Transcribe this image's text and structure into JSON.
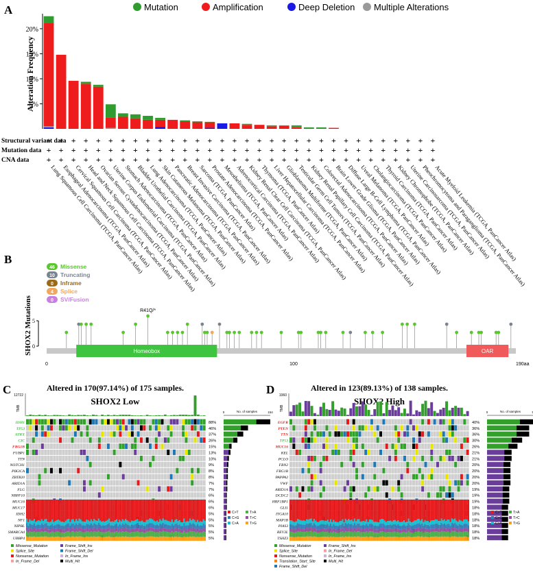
{
  "panels": {
    "a": {
      "letter": "A"
    },
    "b": {
      "letter": "B"
    },
    "c": {
      "letter": "C",
      "header": "Altered in 170(97.14%) of 175 samples.",
      "subtitle": "SHOX2 Low"
    },
    "d": {
      "letter": "D",
      "header": "Altered in 123(89.13%) of 138 samples.",
      "subtitle": "SHOX2 High"
    }
  },
  "chart_data": [
    {
      "type": "bar",
      "panel": "A",
      "ylabel": "Alteration Frequency",
      "ylim": [
        0,
        23
      ],
      "yticks": [
        "5%",
        "10%",
        "15%",
        "20%"
      ],
      "ytick_values": [
        5,
        10,
        15,
        20
      ],
      "legend": [
        {
          "name": "Mutation",
          "color": "#2e9c2e"
        },
        {
          "name": "Amplification",
          "color": "#ee1c1c"
        },
        {
          "name": "Deep Deletion",
          "color": "#1a1ae6"
        },
        {
          "name": "Multiple Alterations",
          "color": "#9a9a9a"
        }
      ],
      "row_labels": [
        "Structural variant data",
        "Mutation data",
        "CNA data"
      ],
      "row_mark": "+",
      "categories": [
        "Lung Squamous Cell Carcinoma (TCGA, PanCancer Atlas)",
        "Esophageal Adenocarcinoma (TCGA, PanCancer Atlas)",
        "Cervical Squamous Cell Carcinoma (TCGA, PanCancer Atlas)",
        "Head and Neck Squamous Cell Carcinoma (TCGA, PanCancer Atlas)",
        "Ovarian Serous Cystadenocarcinoma (TCGA, PanCancer Atlas)",
        "Uterine Corpus Endometrial Carcinoma (TCGA, PanCancer Atlas)",
        "Stomach Adenocarcinoma (TCGA, PanCancer Atlas)",
        "Bladder Urothelial Carcinoma (TCGA, PanCancer Atlas)",
        "Lung Adenocarcinoma (TCGA, PanCancer Atlas)",
        "Skin Cutaneous Melanoma (TCGA, PanCancer Atlas)",
        "Pancreatic Adenocarcinoma (TCGA, PanCancer Atlas)",
        "Breast Invasive Carcinoma (TCGA, PanCancer Atlas)",
        "Sarcoma (TCGA, PanCancer Atlas)",
        "Prostate Adenocarcinoma (TCGA, PanCancer Atlas)",
        "Mesothelioma (TCGA, PanCancer Atlas)",
        "Adrenocortical Carcinoma (TCGA, PanCancer Atlas)",
        "Kidney Renal Clear Cell Carcinoma (TCGA, PanCancer Atlas)",
        "Thymoma (TCGA, PanCancer Atlas)",
        "Liver Hepatocellular Carcinoma (TCGA, PanCancer Atlas)",
        "Glioblastoma Multiforme (TCGA, PanCancer Atlas)",
        "Testicular Germ Cell Tumors (TCGA, PanCancer Atlas)",
        "Kidney Renal Papillary Cell Carcinoma (TCGA, PanCancer Atlas)",
        "Colorectal Adenocarcinoma (TCGA, PanCancer Atlas)",
        "Brain Lower Grade Glioma (TCGA, PanCancer Atlas)",
        "Diffuse Large B-Cell Lymphoma (TCGA, PanCancer Atlas)",
        "Uveal Melanoma (TCGA, PanCancer Atlas)",
        "Cholangiocarcinoma (TCGA, PanCancer Atlas)",
        "Thyroid Carcinoma (TCGA, PanCancer Atlas)",
        "Kidney Chromophobe (TCGA, PanCancer Atlas)",
        "Uterine Carcinosarcoma (TCGA, PanCancer Atlas)",
        "Pheochromocytoma and Paraganglioma (TCGA, PanCancer Atlas)",
        "Acute Myeloid Leukemia (TCGA, PanCancer Atlas)"
      ],
      "series": [
        {
          "name": "Deep Deletion",
          "color": "#1a1ae6",
          "values": [
            0.3,
            0,
            0,
            0,
            0,
            0,
            0,
            0,
            0,
            0.4,
            0,
            0,
            0,
            0.2,
            1.1,
            0,
            0,
            0,
            0,
            0,
            0,
            0,
            0,
            0,
            0,
            0,
            0,
            0,
            0,
            0,
            0,
            0
          ]
        },
        {
          "name": "Multiple Alterations",
          "color": "#9a9a9a",
          "values": [
            0.2,
            0,
            0,
            0,
            0,
            0.2,
            0,
            0,
            0,
            0,
            0,
            0,
            0,
            0,
            0,
            0,
            0,
            0,
            0,
            0,
            0,
            0,
            0,
            0,
            0,
            0,
            0,
            0,
            0,
            0,
            0,
            0
          ]
        },
        {
          "name": "Amplification",
          "color": "#ee1c1c",
          "values": [
            20.7,
            14.8,
            9.6,
            9.0,
            8.4,
            2.0,
            2.4,
            2.1,
            1.8,
            1.4,
            1.8,
            1.5,
            1.3,
            1.1,
            0,
            1.1,
            0.8,
            0.8,
            0.5,
            0.6,
            0.3,
            0,
            0,
            0.2,
            0,
            0,
            0,
            0,
            0,
            0,
            0,
            0
          ]
        },
        {
          "name": "Mutation",
          "color": "#2e9c2e",
          "values": [
            1.3,
            0,
            0,
            0.4,
            0.4,
            2.7,
            0.7,
            0.8,
            0.8,
            0.4,
            0,
            0.2,
            0.2,
            0.1,
            0,
            0,
            0.2,
            0,
            0.2,
            0.1,
            0.4,
            0.3,
            0.3,
            0,
            0,
            0,
            0,
            0,
            0,
            0,
            0,
            0
          ]
        }
      ]
    },
    {
      "type": "scatter",
      "panel": "B",
      "ylabel": "SHOX2 Mutations",
      "ylim": [
        0,
        5
      ],
      "yticks": [
        "0",
        "5"
      ],
      "xticks": [
        "0",
        "100",
        "190aa"
      ],
      "xtick_values": [
        0,
        100,
        190
      ],
      "xlim": [
        0,
        190
      ],
      "legend": [
        {
          "count": "46",
          "name": "Missense",
          "color": "#5bc630"
        },
        {
          "count": "10",
          "name": "Truncating",
          "color": "#7b8390"
        },
        {
          "count": "0",
          "name": "Inframe",
          "color": "#9a6a1a"
        },
        {
          "count": "4",
          "name": "Splice",
          "color": "#f0a860"
        },
        {
          "count": "0",
          "name": "SV/Fusion",
          "color": "#c77fe0"
        }
      ],
      "domains": [
        {
          "name": "Homeobox",
          "start": 12,
          "end": 69,
          "color": "#3ec43e"
        },
        {
          "name": "OAR",
          "start": 170,
          "end": 187,
          "color": "#f05a5a"
        }
      ],
      "annotation": "R41Q/*",
      "points": [
        {
          "x": 8,
          "y": 1,
          "type": "Missense"
        },
        {
          "x": 13,
          "y": 2,
          "type": "Truncating"
        },
        {
          "x": 14,
          "y": 2,
          "type": "Missense"
        },
        {
          "x": 16,
          "y": 2,
          "type": "Missense"
        },
        {
          "x": 18,
          "y": 2,
          "type": "Missense"
        },
        {
          "x": 31,
          "y": 1,
          "type": "Missense"
        },
        {
          "x": 36,
          "y": 2,
          "type": "Missense"
        },
        {
          "x": 41,
          "y": 3,
          "type": "Missense"
        },
        {
          "x": 49,
          "y": 1,
          "type": "Missense"
        },
        {
          "x": 51,
          "y": 1,
          "type": "Missense"
        },
        {
          "x": 53,
          "y": 1,
          "type": "Missense"
        },
        {
          "x": 55,
          "y": 1,
          "type": "Missense"
        },
        {
          "x": 57,
          "y": 2,
          "type": "Missense"
        },
        {
          "x": 63,
          "y": 2,
          "type": "Truncating"
        },
        {
          "x": 64,
          "y": 1,
          "type": "Missense"
        },
        {
          "x": 65,
          "y": 1,
          "type": "Missense"
        },
        {
          "x": 67,
          "y": 1,
          "type": "Splice"
        },
        {
          "x": 70,
          "y": 2,
          "type": "Truncating"
        },
        {
          "x": 73,
          "y": 1,
          "type": "Missense"
        },
        {
          "x": 74,
          "y": 1,
          "type": "Missense"
        },
        {
          "x": 76,
          "y": 1,
          "type": "Missense"
        },
        {
          "x": 78,
          "y": 1,
          "type": "Missense"
        },
        {
          "x": 83,
          "y": 1,
          "type": "Missense"
        },
        {
          "x": 85,
          "y": 1,
          "type": "Missense"
        },
        {
          "x": 87,
          "y": 1,
          "type": "Missense"
        },
        {
          "x": 95,
          "y": 1,
          "type": "Missense"
        },
        {
          "x": 102,
          "y": 1,
          "type": "Missense"
        },
        {
          "x": 103,
          "y": 1,
          "type": "Missense"
        },
        {
          "x": 110,
          "y": 1,
          "type": "Missense"
        },
        {
          "x": 111,
          "y": 1,
          "type": "Missense"
        },
        {
          "x": 113,
          "y": 1,
          "type": "Missense"
        },
        {
          "x": 120,
          "y": 1,
          "type": "Missense"
        },
        {
          "x": 123,
          "y": 1,
          "type": "Truncating"
        },
        {
          "x": 129,
          "y": 1,
          "type": "Missense"
        },
        {
          "x": 132,
          "y": 1,
          "type": "Missense"
        },
        {
          "x": 136,
          "y": 1,
          "type": "Missense"
        },
        {
          "x": 144,
          "y": 2,
          "type": "Missense"
        },
        {
          "x": 146,
          "y": 2,
          "type": "Missense"
        },
        {
          "x": 149,
          "y": 2,
          "type": "Missense"
        },
        {
          "x": 162,
          "y": 2,
          "type": "Truncating"
        },
        {
          "x": 166,
          "y": 1,
          "type": "Missense"
        },
        {
          "x": 172,
          "y": 1,
          "type": "Missense"
        },
        {
          "x": 175,
          "y": 1,
          "type": "Missense"
        },
        {
          "x": 176,
          "y": 1,
          "type": "Missense"
        },
        {
          "x": 182,
          "y": 1,
          "type": "Missense"
        },
        {
          "x": 183,
          "y": 1,
          "type": "Missense"
        },
        {
          "x": 188,
          "y": 2,
          "type": "Truncating"
        }
      ]
    },
    {
      "type": "heatmap",
      "panel": "C",
      "tmb_max": "12722",
      "tmb_label": "TMB",
      "count_axis_label": "No. of samples",
      "count_axis_ticks": [
        "0",
        "154"
      ],
      "count_axis_max": 154,
      "sample_count": 175,
      "genes": [
        {
          "name": "IDH1",
          "pct": 88,
          "label": "88%",
          "style": "green"
        },
        {
          "name": "TP53",
          "pct": 46,
          "label": "46%",
          "style": "green"
        },
        {
          "name": "ATRX",
          "pct": 37,
          "label": "37%",
          "style": "green"
        },
        {
          "name": "CIC",
          "pct": 26,
          "label": "26%",
          "style": "green"
        },
        {
          "name": "FRG1B",
          "pct": 15,
          "label": "15%",
          "style": "red"
        },
        {
          "name": "FUBP1",
          "pct": 13,
          "label": "13%",
          "style": "plain"
        },
        {
          "name": "TTN",
          "pct": 10,
          "label": "10%",
          "style": "plain"
        },
        {
          "name": "NOTCH1",
          "pct": 9,
          "label": "9%",
          "style": "plain"
        },
        {
          "name": "PIK3CA",
          "pct": 8,
          "label": "8%",
          "style": "plain"
        },
        {
          "name": "ZBTB20",
          "pct": 8,
          "label": "8%",
          "style": "plain"
        },
        {
          "name": "ARID1A",
          "pct": 7,
          "label": "7%",
          "style": "plain"
        },
        {
          "name": "FLG",
          "pct": 7,
          "label": "7%",
          "style": "plain"
        },
        {
          "name": "NBPF10",
          "pct": 6,
          "label": "6%",
          "style": "plain"
        },
        {
          "name": "MUC16",
          "pct": 6,
          "label": "6%",
          "style": "plain"
        },
        {
          "name": "MUC17",
          "pct": 6,
          "label": "6%",
          "style": "plain"
        },
        {
          "name": "IDH2",
          "pct": 5,
          "label": "5%",
          "style": "plain"
        },
        {
          "name": "NF1",
          "pct": 5,
          "label": "5%",
          "style": "plain"
        },
        {
          "name": "NIPBL",
          "pct": 5,
          "label": "5%",
          "style": "plain"
        },
        {
          "name": "SMARCA4",
          "pct": 5,
          "label": "5%",
          "style": "plain"
        },
        {
          "name": "UBBP4",
          "pct": 5,
          "label": "5%",
          "style": "plain"
        }
      ],
      "titv_legend": [
        {
          "name": "C>T",
          "color": "#e41a1c"
        },
        {
          "name": "T>A",
          "color": "#4daf4a"
        },
        {
          "name": "C>G",
          "color": "#377eb8"
        },
        {
          "name": "T>C",
          "color": "#984ea3"
        },
        {
          "name": "C>A",
          "color": "#17becf"
        },
        {
          "name": "T>G",
          "color": "#ff9f1c"
        }
      ],
      "variant_legend": [
        {
          "name": "Missense_Mutation",
          "color": "#33a02c"
        },
        {
          "name": "Frame_Shift_Ins",
          "color": "#6a3d9a"
        },
        {
          "name": "Splice_Site",
          "color": "#e6e600"
        },
        {
          "name": "Frame_Shift_Del",
          "color": "#1f78b4"
        },
        {
          "name": "Nonsense_Mutation",
          "color": "#e31a1c"
        },
        {
          "name": "In_Frame_Ins",
          "color": "#cab2d6"
        },
        {
          "name": "In_Frame_Del",
          "color": "#fb9a99"
        },
        {
          "name": "Multi_Hit",
          "color": "#000000"
        }
      ]
    },
    {
      "type": "heatmap",
      "panel": "D",
      "tmb_max": "1060",
      "tmb_label": "TMB",
      "count_axis_label": "No. of samples",
      "count_axis_ticks": [
        "0",
        "55"
      ],
      "count_axis_max": 55,
      "sample_count": 138,
      "genes": [
        {
          "name": "EGFR",
          "pct": 40,
          "label": "40%",
          "style": "red"
        },
        {
          "name": "PTEN",
          "pct": 36,
          "label": "36%",
          "style": "red"
        },
        {
          "name": "TTN",
          "pct": 36,
          "label": "36%",
          "style": "red"
        },
        {
          "name": "TP53",
          "pct": 30,
          "label": "30%",
          "style": "green"
        },
        {
          "name": "MUC16",
          "pct": 26,
          "label": "26%",
          "style": "red"
        },
        {
          "name": "KEL",
          "pct": 21,
          "label": "21%",
          "style": "plain"
        },
        {
          "name": "PCLO",
          "pct": 21,
          "label": "21%",
          "style": "plain"
        },
        {
          "name": "FBN2",
          "pct": 20,
          "label": "20%",
          "style": "plain"
        },
        {
          "name": "FRG1B",
          "pct": 20,
          "label": "20%",
          "style": "plain"
        },
        {
          "name": "PAPPA2",
          "pct": 20,
          "label": "20%",
          "style": "plain"
        },
        {
          "name": "VWF",
          "pct": 20,
          "label": "20%",
          "style": "plain"
        },
        {
          "name": "ARID1A",
          "pct": 19,
          "label": "19%",
          "style": "plain"
        },
        {
          "name": "DCDC2",
          "pct": 19,
          "label": "19%",
          "style": "plain"
        },
        {
          "name": "HRF1BP1",
          "pct": 19,
          "label": "19%",
          "style": "plain"
        },
        {
          "name": "GLI1",
          "pct": 18,
          "label": "18%",
          "style": "plain"
        },
        {
          "name": "ITGA10",
          "pct": 18,
          "label": "18%",
          "style": "plain"
        },
        {
          "name": "MAP1B",
          "pct": 18,
          "label": "18%",
          "style": "plain"
        },
        {
          "name": "PIAS3",
          "pct": 18,
          "label": "18%",
          "style": "plain"
        },
        {
          "name": "REV3L",
          "pct": 18,
          "label": "18%",
          "style": "plain"
        },
        {
          "name": "TSHZ3",
          "pct": 18,
          "label": "18%",
          "style": "plain"
        }
      ],
      "titv_legend": [
        {
          "name": "C>T",
          "color": "#e41a1c"
        },
        {
          "name": "T>A",
          "color": "#4daf4a"
        },
        {
          "name": "C>G",
          "color": "#377eb8"
        },
        {
          "name": "T>C",
          "color": "#984ea3"
        },
        {
          "name": "C>A",
          "color": "#17becf"
        },
        {
          "name": "T>G",
          "color": "#ff9f1c"
        }
      ],
      "variant_legend": [
        {
          "name": "Missense_Mutation",
          "color": "#33a02c"
        },
        {
          "name": "Frame_Shift_Ins",
          "color": "#6a3d9a"
        },
        {
          "name": "Splice_Site",
          "color": "#e6e600"
        },
        {
          "name": "In_Frame_Del",
          "color": "#fb9a99"
        },
        {
          "name": "Nonsense_Mutation",
          "color": "#e31a1c"
        },
        {
          "name": "In_Frame_Ins",
          "color": "#cab2d6"
        },
        {
          "name": "Translation_Start_Site",
          "color": "#ff7f00"
        },
        {
          "name": "Multi_Hit",
          "color": "#000000"
        },
        {
          "name": "Frame_Shift_Del",
          "color": "#1f78b4"
        }
      ]
    }
  ]
}
